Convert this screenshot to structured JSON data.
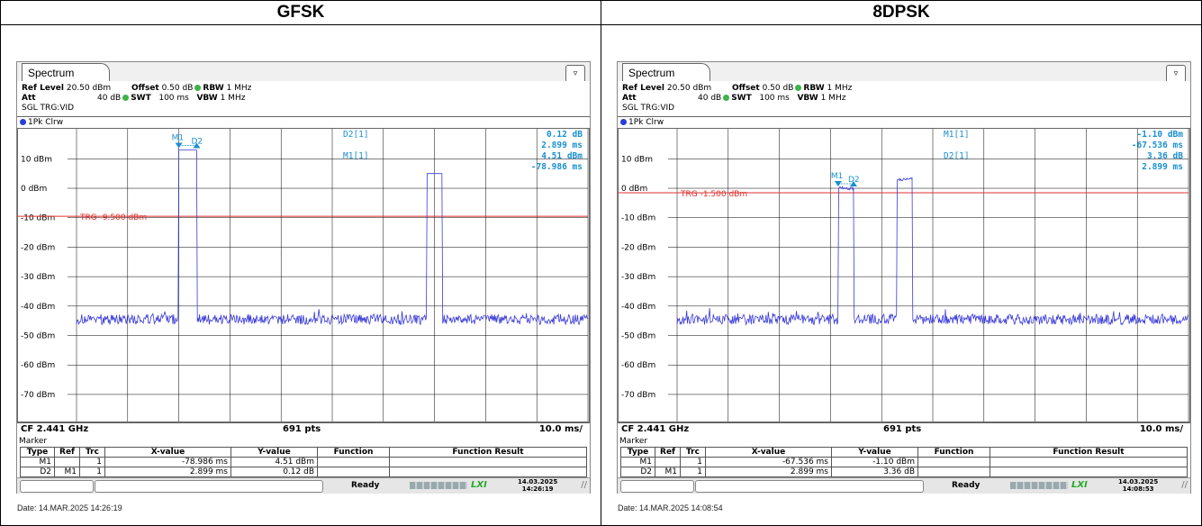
{
  "panels": [
    {
      "header": "GFSK",
      "tab_label": "Spectrum",
      "ref_level_label": "Ref Level",
      "ref_level": "20.50 dBm",
      "offset_label": "Offset",
      "offset": "0.50 dB",
      "rbw_label": "RBW",
      "rbw": "1 MHz",
      "att_label": "Att",
      "att": "40 dB",
      "swt_label": "SWT",
      "swt": "100 ms",
      "vbw_label": "VBW",
      "vbw": "1 MHz",
      "trigger_mode": "SGL TRG:VID",
      "trace_label": "1Pk Clrw",
      "readouts": [
        {
          "name": "D2[1]",
          "v1": "0.12 dB",
          "v2": "2.899 ms"
        },
        {
          "name": "M1[1]",
          "v1": "4.51 dBm",
          "v2": "-78.986 ms"
        }
      ],
      "trg_label": "TRG  -9.500 dBm",
      "trg_level_dbm": -9.5,
      "marker_labels": [
        "M1",
        "D2"
      ],
      "y_ticks": [
        "10 dBm",
        "0 dBm",
        "-10 dBm",
        "-20 dBm",
        "-30 dBm",
        "-40 dBm",
        "-50 dBm",
        "-60 dBm",
        "-70 dBm"
      ],
      "cf": "CF 2.441 GHz",
      "pts": "691 pts",
      "div": "10.0 ms/",
      "marker_table_title": "Marker",
      "marker_columns": [
        "Type",
        "Ref",
        "Trc",
        "X-value",
        "Y-value",
        "Function",
        "Function Result"
      ],
      "marker_rows": [
        [
          "M1",
          "",
          "1",
          "-78.986 ms",
          "4.51 dBm",
          "",
          ""
        ],
        [
          "D2",
          "M1",
          "1",
          "2.899 ms",
          "0.12 dB",
          "",
          ""
        ]
      ],
      "status": "Ready",
      "status_date": "14.03.2025",
      "status_time": "14:26:19",
      "date_footer": "Date: 14.MAR.2025  14:26:19"
    },
    {
      "header": "8DPSK",
      "tab_label": "Spectrum",
      "ref_level_label": "Ref Level",
      "ref_level": "20.50 dBm",
      "offset_label": "Offset",
      "offset": "0.50 dB",
      "rbw_label": "RBW",
      "rbw": "1 MHz",
      "att_label": "Att",
      "att": "40 dB",
      "swt_label": "SWT",
      "swt": "100 ms",
      "vbw_label": "VBW",
      "vbw": "1 MHz",
      "trigger_mode": "SGL TRG:VID",
      "trace_label": "1Pk Clrw",
      "readouts": [
        {
          "name": "M1[1]",
          "v1": "-1.10 dBm",
          "v2": "-67.536 ms"
        },
        {
          "name": "D2[1]",
          "v1": "3.36 dB",
          "v2": "2.899 ms"
        }
      ],
      "trg_label": "TRG  -1.500 dBm",
      "trg_level_dbm": -1.5,
      "marker_labels": [
        "M1",
        "D2"
      ],
      "y_ticks": [
        "10 dBm",
        "0 dBm",
        "-10 dBm",
        "-20 dBm",
        "-30 dBm",
        "-40 dBm",
        "-50 dBm",
        "-60 dBm",
        "-70 dBm"
      ],
      "cf": "CF 2.441 GHz",
      "pts": "691 pts",
      "div": "10.0 ms/",
      "marker_table_title": "Marker",
      "marker_columns": [
        "Type",
        "Ref",
        "Trc",
        "X-value",
        "Y-value",
        "Function",
        "Function Result"
      ],
      "marker_rows": [
        [
          "M1",
          "",
          "1",
          "-67.536 ms",
          "-1.10 dBm",
          "",
          ""
        ],
        [
          "D2",
          "M1",
          "1",
          "2.899 ms",
          "3.36 dB",
          "",
          ""
        ]
      ],
      "status": "Ready",
      "status_date": "14.03.2025",
      "status_time": "14:08:53",
      "date_footer": "Date: 14.MAR.2025  14:08:54"
    }
  ],
  "colors": {
    "trace": "#3a3ad8",
    "trigger": "#e03030",
    "marker": "#1a8fd0",
    "grid": "#000000"
  }
}
